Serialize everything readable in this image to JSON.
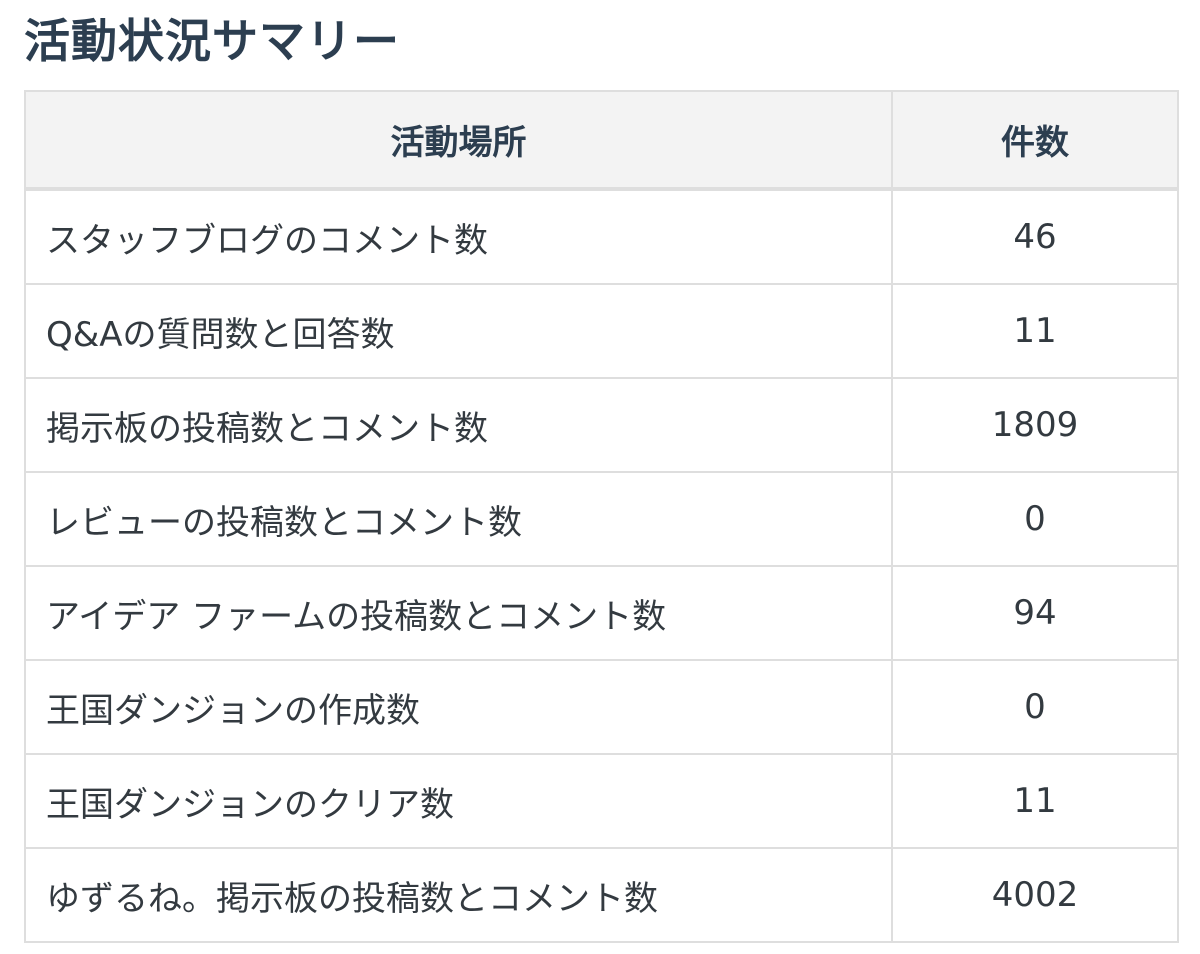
{
  "title": "活動状況サマリー",
  "table": {
    "headers": [
      "活動場所",
      "件数"
    ],
    "rows": [
      {
        "place": "スタッフブログのコメント数",
        "count": "46"
      },
      {
        "place": "Q&Aの質問数と回答数",
        "count": "11"
      },
      {
        "place": "掲示板の投稿数とコメント数",
        "count": "1809"
      },
      {
        "place": "レビューの投稿数とコメント数",
        "count": "0"
      },
      {
        "place": "アイデア ファームの投稿数とコメント数",
        "count": "94"
      },
      {
        "place": "王国ダンジョンの作成数",
        "count": "0"
      },
      {
        "place": "王国ダンジョンのクリア数",
        "count": "11"
      },
      {
        "place": "ゆずるね。掲示板の投稿数とコメント数",
        "count": "4002"
      }
    ]
  }
}
